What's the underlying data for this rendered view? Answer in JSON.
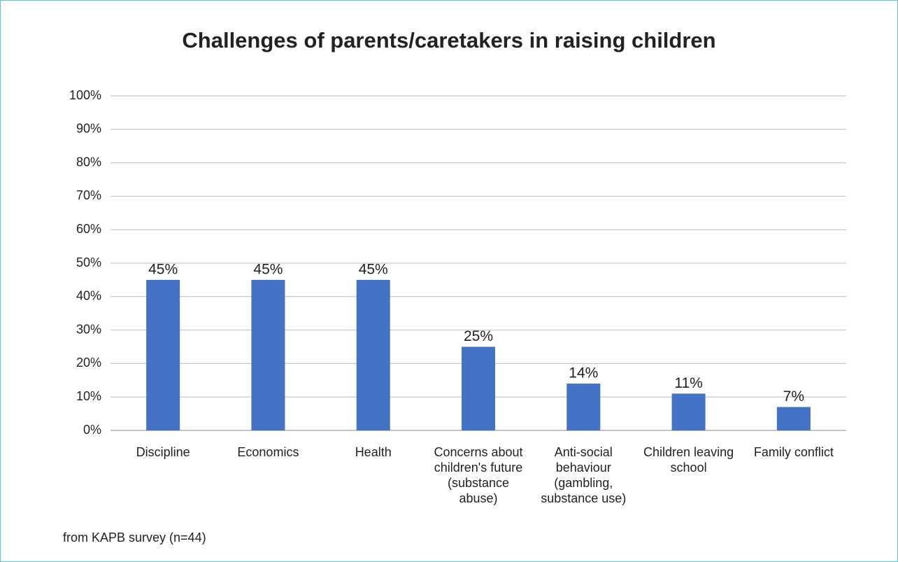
{
  "chart_data": {
    "type": "bar",
    "title": "Challenges of parents/caretakers in raising children",
    "categories": [
      "Discipline",
      "Economics",
      "Health",
      "Concerns about children's future (substance abuse)",
      "Anti-social behaviour (gambling, substance use)",
      "Children leaving school",
      "Family conflict"
    ],
    "values": [
      45,
      45,
      45,
      25,
      14,
      11,
      7
    ],
    "value_labels": [
      "45%",
      "45%",
      "45%",
      "25%",
      "14%",
      "11%",
      "7%"
    ],
    "color": "#4472c4",
    "ylim": [
      0,
      100
    ],
    "yticks": [
      {
        "value": 0,
        "label": "0%"
      },
      {
        "value": 10,
        "label": "10%"
      },
      {
        "value": 20,
        "label": "20%"
      },
      {
        "value": 30,
        "label": "30%"
      },
      {
        "value": 40,
        "label": "40%"
      },
      {
        "value": 50,
        "label": "50%"
      },
      {
        "value": 60,
        "label": "60%"
      },
      {
        "value": 70,
        "label": "70%"
      },
      {
        "value": 80,
        "label": "80%"
      },
      {
        "value": 90,
        "label": "90%"
      },
      {
        "value": 100,
        "label": "100%"
      }
    ],
    "grid": true,
    "annotation": "from KAPB survey (n=44)"
  }
}
